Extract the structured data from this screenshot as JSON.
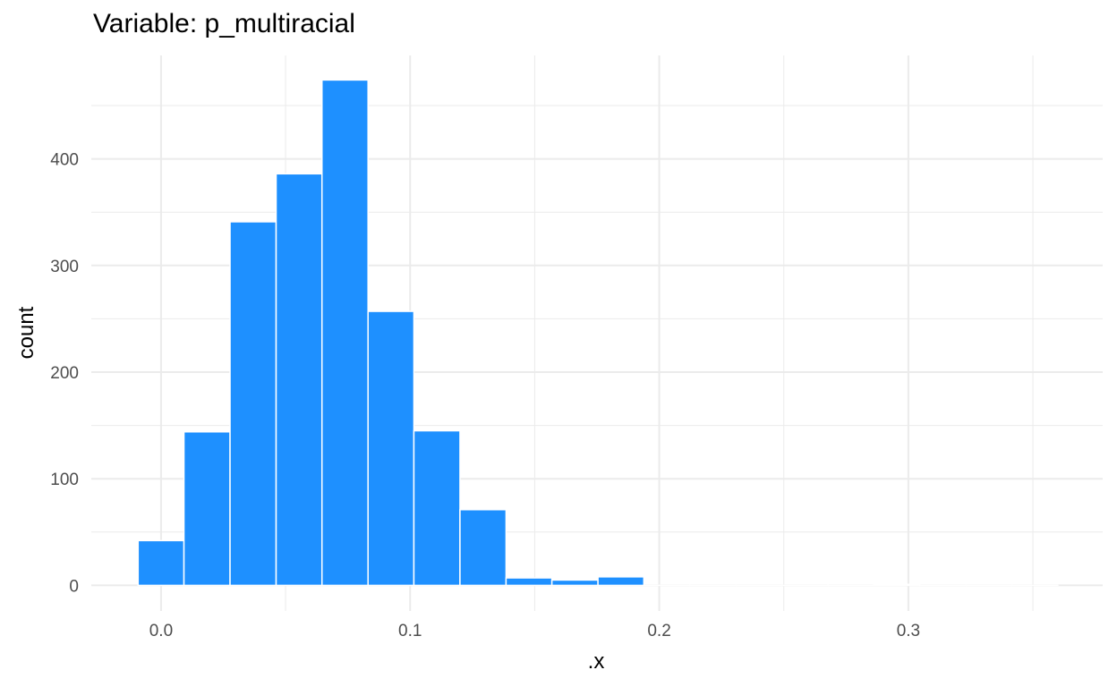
{
  "chart_data": {
    "type": "bar",
    "title": "Variable: p_multiracial",
    "xlabel": ".x",
    "ylabel": "count",
    "bin_width": 0.01846,
    "bins": [
      {
        "x0": -0.0092,
        "x1": 0.0092,
        "count": 42
      },
      {
        "x0": 0.0092,
        "x1": 0.0277,
        "count": 144
      },
      {
        "x0": 0.0277,
        "x1": 0.0462,
        "count": 341
      },
      {
        "x0": 0.0462,
        "x1": 0.0646,
        "count": 386
      },
      {
        "x0": 0.0646,
        "x1": 0.0831,
        "count": 474
      },
      {
        "x0": 0.0831,
        "x1": 0.1015,
        "count": 257
      },
      {
        "x0": 0.1015,
        "x1": 0.12,
        "count": 145
      },
      {
        "x0": 0.12,
        "x1": 0.1385,
        "count": 71
      },
      {
        "x0": 0.1385,
        "x1": 0.1569,
        "count": 7
      },
      {
        "x0": 0.1569,
        "x1": 0.1754,
        "count": 5
      },
      {
        "x0": 0.1754,
        "x1": 0.1938,
        "count": 8
      },
      {
        "x0": 0.1938,
        "x1": 0.2123,
        "count": 0
      },
      {
        "x0": 0.2123,
        "x1": 0.2308,
        "count": 0
      },
      {
        "x0": 0.2308,
        "x1": 0.2492,
        "count": 0
      },
      {
        "x0": 0.2492,
        "x1": 0.2677,
        "count": 0
      },
      {
        "x0": 0.2677,
        "x1": 0.2862,
        "count": 0
      },
      {
        "x0": 0.2862,
        "x1": 0.3046,
        "count": 1
      },
      {
        "x0": 0.3046,
        "x1": 0.3231,
        "count": 0
      },
      {
        "x0": 0.3231,
        "x1": 0.3415,
        "count": 0
      },
      {
        "x0": 0.3415,
        "x1": 0.36,
        "count": 0
      }
    ],
    "xlim": [
      -0.028,
      0.378
    ],
    "ylim": [
      -24,
      497
    ],
    "x_ticks": [
      {
        "value": 0.0,
        "label": "0.0"
      },
      {
        "value": 0.1,
        "label": "0.1"
      },
      {
        "value": 0.2,
        "label": "0.2"
      },
      {
        "value": 0.3,
        "label": "0.3"
      }
    ],
    "y_ticks": [
      {
        "value": 0,
        "label": "0"
      },
      {
        "value": 100,
        "label": "100"
      },
      {
        "value": 200,
        "label": "200"
      },
      {
        "value": 300,
        "label": "300"
      },
      {
        "value": 400,
        "label": "400"
      }
    ],
    "grid": true,
    "bar_color": "#1E90FF",
    "bar_outline": "#FFFFFF",
    "grid_color": "#EBEBEB"
  }
}
